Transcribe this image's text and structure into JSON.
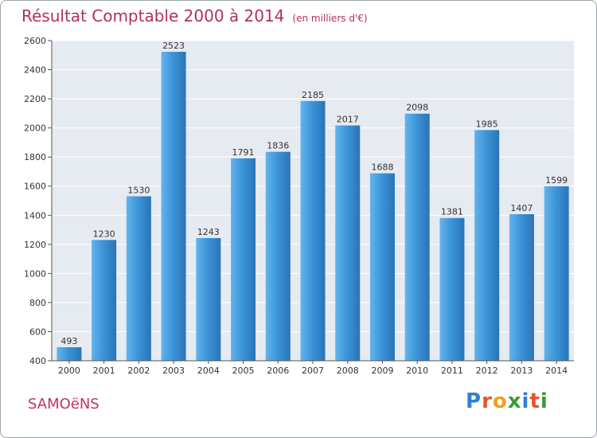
{
  "header": {
    "title": "Résultat Comptable 2000 à 2014",
    "subtitle": "(en milliers d'€)"
  },
  "footer": {
    "commune": "SAMOëNS",
    "logo_text": "Proxiti",
    "logo_colors": [
      "#2f7fd6",
      "#e8542c",
      "#f0a020",
      "#3a9a3a",
      "#2f7fd6",
      "#e8542c",
      "#3a9a3a"
    ]
  },
  "colors": {
    "bar": "#3d95d9",
    "bar_light": "#63b4ec",
    "bar_dark": "#2a74b8",
    "plot_bg": "#e6eaf1",
    "grid": "#ffffff",
    "title": "#b03060"
  },
  "chart_data": {
    "type": "bar",
    "categories": [
      "2000",
      "2001",
      "2002",
      "2003",
      "2004",
      "2005",
      "2006",
      "2007",
      "2008",
      "2009",
      "2010",
      "2011",
      "2012",
      "2013",
      "2014"
    ],
    "values": [
      493,
      1230,
      1530,
      2523,
      1243,
      1791,
      1836,
      2185,
      2017,
      1688,
      2098,
      1381,
      1985,
      1407,
      1599
    ],
    "title": "Résultat Comptable 2000 à 2014",
    "subtitle": "(en milliers d'€)",
    "ylim": [
      400,
      2600
    ],
    "yticks": [
      400,
      600,
      800,
      1000,
      1200,
      1400,
      1600,
      1800,
      2000,
      2200,
      2400,
      2600
    ],
    "grid": true
  }
}
